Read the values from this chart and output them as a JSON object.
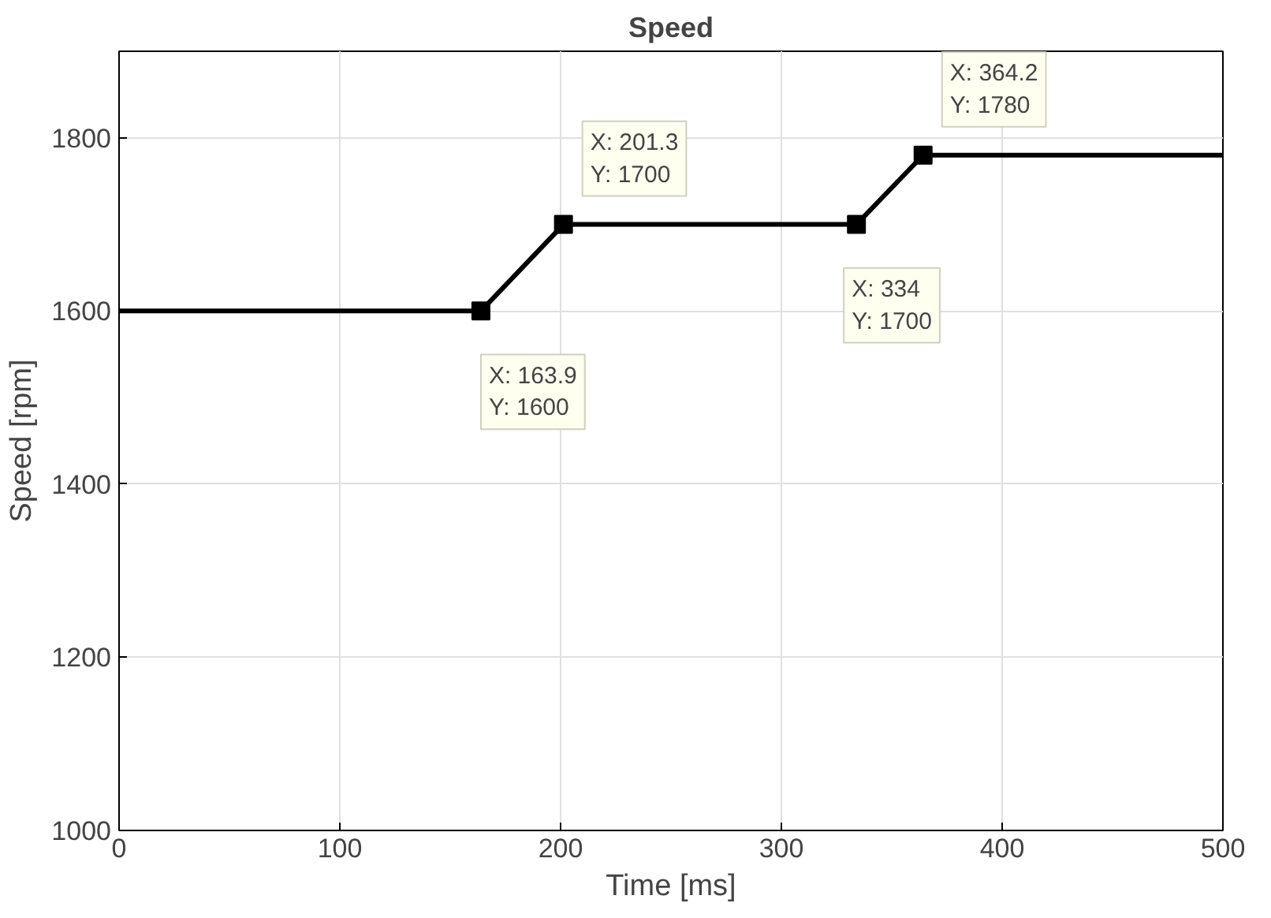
{
  "chart_data": {
    "type": "line",
    "title": "Speed",
    "xlabel": "Time [ms]",
    "ylabel": "Speed [rpm]",
    "x": [
      0,
      163.9,
      201.3,
      334,
      364.2,
      500
    ],
    "series": [
      {
        "color": "#000000",
        "values": [
          1600,
          1600,
          1700,
          1700,
          1780,
          1780
        ]
      }
    ],
    "xlim": [
      0,
      500
    ],
    "xticks": [
      0,
      100,
      200,
      300,
      400,
      500
    ],
    "ylim": [
      1000,
      1900
    ],
    "yticks": [
      1000,
      1200,
      1400,
      1600,
      1800
    ],
    "grid": true,
    "line_style": "solid",
    "annotations": [
      {
        "text": "X: 163.9\nY: 1600",
        "x": 163.9,
        "y": 1600
      },
      {
        "text": "X: 201.3\nY: 1700",
        "x": 201.3,
        "y": 1700
      },
      {
        "text": "X: 334\nY: 1700",
        "x": 334,
        "y": 1700
      },
      {
        "text": "X: 364.2\nY: 1780",
        "x": 364.2,
        "y": 1780
      }
    ]
  }
}
